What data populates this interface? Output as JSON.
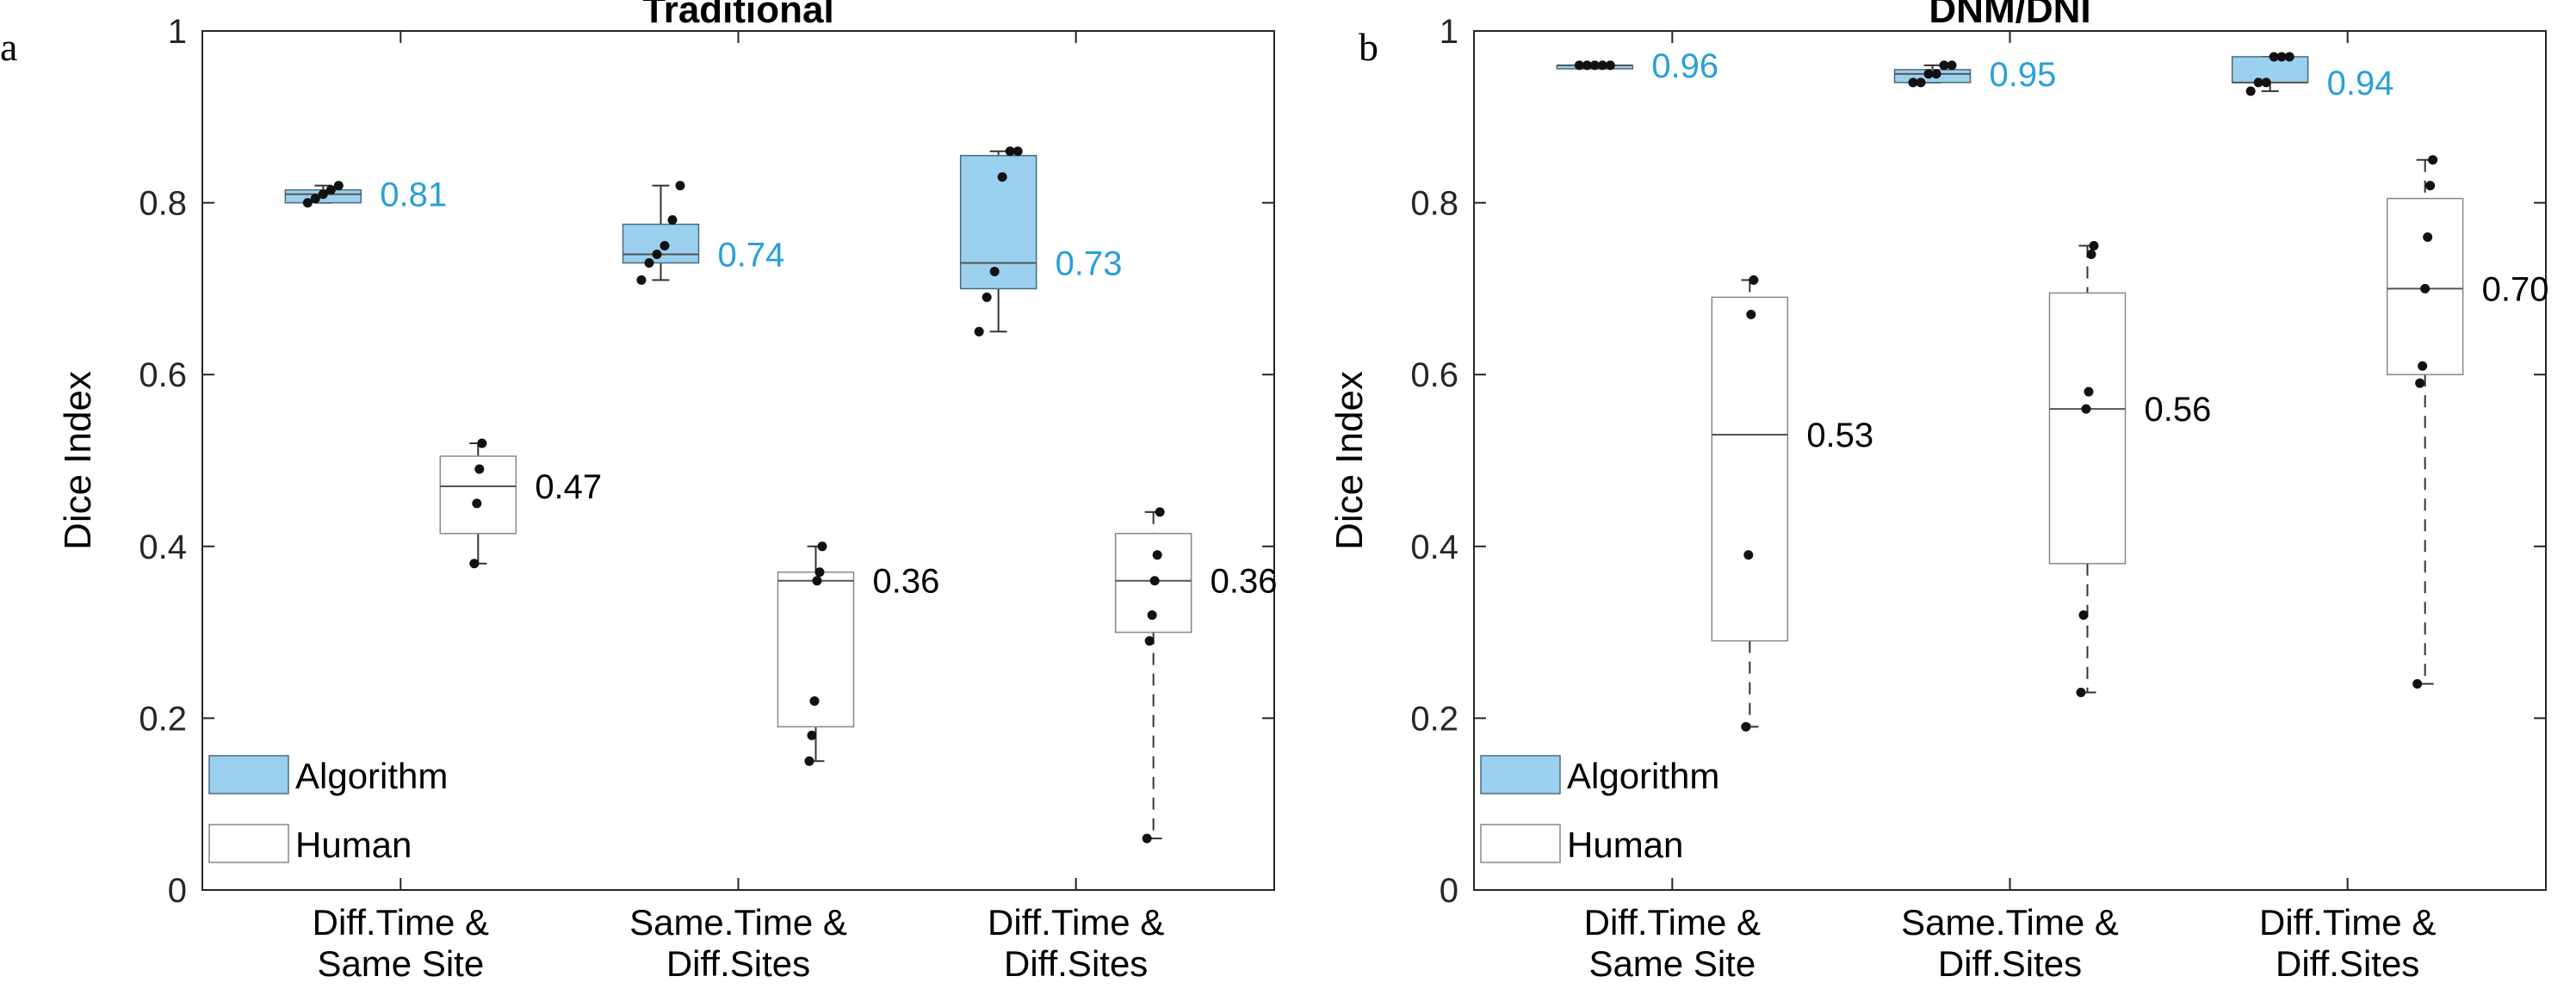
{
  "chart_data": [
    {
      "type": "box",
      "panel_letter": "a",
      "title": "Traditional",
      "ylabel": "Dice Index",
      "ylim": [
        0,
        1
      ],
      "yticks": [
        "0",
        "0.2",
        "0.4",
        "0.6",
        "0.8",
        "1"
      ],
      "categories": [
        [
          "Diff.Time &",
          "Same Site"
        ],
        [
          "Same.Time &",
          "Diff.Sites"
        ],
        [
          "Diff.Time &",
          "Diff.Sites"
        ]
      ],
      "legend": {
        "position": "bottom-left",
        "entries": [
          "Algorithm",
          "Human"
        ]
      },
      "series": [
        {
          "name": "Algorithm",
          "color": "#9bd0ee",
          "label_color": "#2a9fd8",
          "boxes": [
            {
              "whisker_low": 0.8,
              "q1": 0.8,
              "median": 0.81,
              "q3": 0.815,
              "whisker_high": 0.82,
              "dashed": false,
              "median_label": "0.81",
              "points": [
                0.8,
                0.805,
                0.81,
                0.815,
                0.82
              ]
            },
            {
              "whisker_low": 0.71,
              "q1": 0.73,
              "median": 0.74,
              "q3": 0.775,
              "whisker_high": 0.82,
              "dashed": false,
              "median_label": "0.74",
              "points": [
                0.71,
                0.73,
                0.74,
                0.75,
                0.78,
                0.82
              ]
            },
            {
              "whisker_low": 0.65,
              "q1": 0.7,
              "median": 0.73,
              "q3": 0.855,
              "whisker_high": 0.86,
              "dashed": false,
              "median_label": "0.73",
              "points": [
                0.65,
                0.69,
                0.72,
                0.83,
                0.86,
                0.86
              ]
            }
          ]
        },
        {
          "name": "Human",
          "color": "#ffffff",
          "label_color": "#000000",
          "boxes": [
            {
              "whisker_low": 0.38,
              "q1": 0.415,
              "median": 0.47,
              "q3": 0.505,
              "whisker_high": 0.52,
              "dashed": false,
              "median_label": "0.47",
              "points": [
                0.38,
                0.45,
                0.49,
                0.52
              ]
            },
            {
              "whisker_low": 0.15,
              "q1": 0.19,
              "median": 0.36,
              "q3": 0.37,
              "whisker_high": 0.4,
              "dashed": false,
              "median_label": "0.36",
              "points": [
                0.15,
                0.18,
                0.22,
                0.36,
                0.37,
                0.4
              ]
            },
            {
              "whisker_low": 0.06,
              "q1": 0.3,
              "median": 0.36,
              "q3": 0.415,
              "whisker_high": 0.44,
              "dashed": true,
              "median_label": "0.36",
              "points": [
                0.06,
                0.29,
                0.32,
                0.36,
                0.39,
                0.44
              ]
            }
          ]
        }
      ]
    },
    {
      "type": "box",
      "panel_letter": "b",
      "title": "DNM/DNI",
      "ylabel": "Dice Index",
      "ylim": [
        0,
        1
      ],
      "yticks": [
        "0",
        "0.2",
        "0.4",
        "0.6",
        "0.8",
        "1"
      ],
      "categories": [
        [
          "Diff.Time &",
          "Same Site"
        ],
        [
          "Same.Time &",
          "Diff.Sites"
        ],
        [
          "Diff.Time &",
          "Diff.Sites"
        ]
      ],
      "legend": {
        "position": "bottom-left",
        "entries": [
          "Algorithm",
          "Human"
        ]
      },
      "series": [
        {
          "name": "Algorithm",
          "color": "#9bd0ee",
          "label_color": "#2a9fd8",
          "boxes": [
            {
              "whisker_low": 0.96,
              "q1": 0.96,
              "median": 0.96,
              "q3": 0.96,
              "whisker_high": 0.96,
              "dashed": false,
              "median_label": "0.96",
              "points": [
                0.96,
                0.96,
                0.96,
                0.96,
                0.96
              ]
            },
            {
              "whisker_low": 0.94,
              "q1": 0.94,
              "median": 0.95,
              "q3": 0.955,
              "whisker_high": 0.96,
              "dashed": false,
              "median_label": "0.95",
              "points": [
                0.94,
                0.94,
                0.95,
                0.95,
                0.96,
                0.96
              ]
            },
            {
              "whisker_low": 0.93,
              "q1": 0.94,
              "median": 0.94,
              "q3": 0.97,
              "whisker_high": 0.97,
              "dashed": false,
              "median_label": "0.94",
              "points": [
                0.93,
                0.94,
                0.94,
                0.97,
                0.97,
                0.97
              ]
            }
          ]
        },
        {
          "name": "Human",
          "color": "#ffffff",
          "label_color": "#000000",
          "boxes": [
            {
              "whisker_low": 0.19,
              "q1": 0.29,
              "median": 0.53,
              "q3": 0.69,
              "whisker_high": 0.71,
              "dashed": true,
              "median_label": "0.53",
              "points": [
                0.19,
                0.39,
                0.67,
                0.71
              ]
            },
            {
              "whisker_low": 0.23,
              "q1": 0.38,
              "median": 0.56,
              "q3": 0.695,
              "whisker_high": 0.75,
              "dashed": true,
              "median_label": "0.56",
              "points": [
                0.23,
                0.32,
                0.56,
                0.58,
                0.74,
                0.75
              ]
            },
            {
              "whisker_low": 0.24,
              "q1": 0.6,
              "median": 0.7,
              "q3": 0.805,
              "whisker_high": 0.85,
              "dashed": true,
              "median_label": "0.70",
              "points": [
                0.24,
                0.59,
                0.61,
                0.7,
                0.76,
                0.82,
                0.85
              ]
            }
          ]
        }
      ]
    }
  ]
}
